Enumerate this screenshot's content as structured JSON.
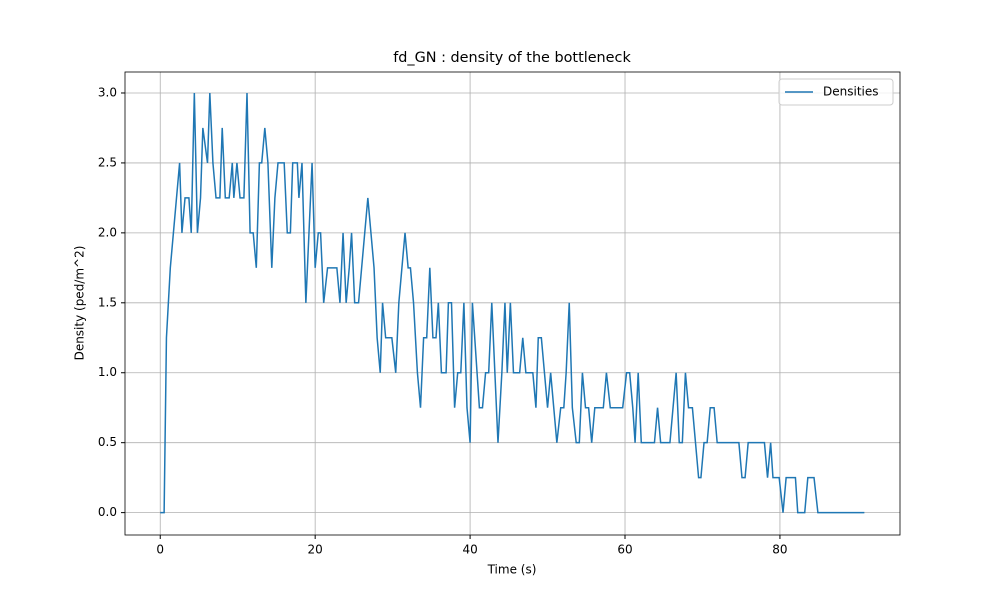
{
  "chart_data": {
    "type": "line",
    "title": "fd_GN : density of the bottleneck",
    "x_label": "Time (s)",
    "y_label": "Density (ped/m^2)",
    "xlim": [
      -4.55,
      95.5
    ],
    "ylim": [
      -0.16,
      3.15
    ],
    "xticks": [
      0,
      20,
      40,
      60,
      80
    ],
    "yticks": [
      {
        "value": 0,
        "label": "0.0"
      },
      {
        "value": 0.5,
        "label": "0.5"
      },
      {
        "value": 1,
        "label": "1.0"
      },
      {
        "value": 1.5,
        "label": "1.5"
      },
      {
        "value": 2,
        "label": "2.0"
      },
      {
        "value": 2.5,
        "label": "2.5"
      },
      {
        "value": 3,
        "label": "3.0"
      }
    ],
    "grid": true,
    "legend": "upper right",
    "x": [
      0,
      0.5,
      0.8,
      1.3,
      2.5,
      2.8,
      3.2,
      3.7,
      4.0,
      4.4,
      4.8,
      5.2,
      5.5,
      6.1,
      6.4,
      6.8,
      7.2,
      7.7,
      8.0,
      8.4,
      8.9,
      9.3,
      9.5,
      9.9,
      10.3,
      10.8,
      11.2,
      11.6,
      12.0,
      12.4,
      12.8,
      13.1,
      13.5,
      13.9,
      14.4,
      14.8,
      15.2,
      16.0,
      16.4,
      16.8,
      17.1,
      17.7,
      17.9,
      18.3,
      18.8,
      19.2,
      19.6,
      20.0,
      20.4,
      20.7,
      21.1,
      21.6,
      22.8,
      23.2,
      23.6,
      24.0,
      24.4,
      24.7,
      25.1,
      25.6,
      26.0,
      26.4,
      26.8,
      27.2,
      27.6,
      28.0,
      28.4,
      28.7,
      29.1,
      29.9,
      30.4,
      30.8,
      31.2,
      31.6,
      32.0,
      32.3,
      32.7,
      33.2,
      33.6,
      34.0,
      34.4,
      34.8,
      35.2,
      35.6,
      35.9,
      36.3,
      36.9,
      37.2,
      37.6,
      38.0,
      38.4,
      38.8,
      39.2,
      39.6,
      40.0,
      40.3,
      40.9,
      41.2,
      41.6,
      42.0,
      42.4,
      42.8,
      43.2,
      43.6,
      44.1,
      44.5,
      44.8,
      45.2,
      45.6,
      46.0,
      46.4,
      46.8,
      47.2,
      48.1,
      48.5,
      48.8,
      49.2,
      49.6,
      50.0,
      50.4,
      50.8,
      51.2,
      51.7,
      52.1,
      52.4,
      52.8,
      53.2,
      53.7,
      54.1,
      54.5,
      54.9,
      55.3,
      55.7,
      56.1,
      56.4,
      56.8,
      57.2,
      57.6,
      58.1,
      59.7,
      60.2,
      60.6,
      61.0,
      61.3,
      61.7,
      62.1,
      63.8,
      64.2,
      64.6,
      65.8,
      66.2,
      66.6,
      67.0,
      67.4,
      67.8,
      68.2,
      68.7,
      69.1,
      69.5,
      69.8,
      70.2,
      70.6,
      71.0,
      71.5,
      71.9,
      74.7,
      75.1,
      75.5,
      75.9,
      78.0,
      78.4,
      78.8,
      79.1,
      79.9,
      80.4,
      80.8,
      82.0,
      82.3,
      83.2,
      83.6,
      84.4,
      84.9,
      90.9
    ],
    "series": [
      {
        "name": "Densities",
        "color": "#1f77b4",
        "values": [
          0,
          0,
          1.25,
          1.75,
          2.5,
          2.0,
          2.25,
          2.25,
          2.0,
          3.0,
          2.0,
          2.25,
          2.75,
          2.5,
          3.0,
          2.5,
          2.25,
          2.25,
          2.75,
          2.25,
          2.25,
          2.5,
          2.25,
          2.5,
          2.25,
          2.25,
          3.0,
          2.0,
          2.0,
          1.75,
          2.5,
          2.5,
          2.75,
          2.5,
          1.75,
          2.25,
          2.5,
          2.5,
          2.0,
          2.0,
          2.5,
          2.5,
          2.25,
          2.5,
          1.5,
          2.0,
          2.5,
          1.75,
          2.0,
          2.0,
          1.5,
          1.75,
          1.75,
          1.5,
          2.0,
          1.5,
          1.75,
          2.0,
          1.5,
          1.5,
          1.75,
          2.0,
          2.25,
          2.0,
          1.75,
          1.25,
          1.0,
          1.5,
          1.25,
          1.25,
          1.0,
          1.5,
          1.75,
          2.0,
          1.75,
          1.75,
          1.5,
          1.0,
          0.75,
          1.25,
          1.25,
          1.75,
          1.25,
          1.25,
          1.5,
          1.0,
          1.0,
          1.5,
          1.5,
          0.75,
          1.0,
          1.0,
          1.5,
          0.75,
          0.5,
          1.5,
          1.0,
          0.75,
          0.75,
          1.0,
          1.0,
          1.5,
          1.0,
          0.5,
          1.0,
          1.5,
          1.0,
          1.5,
          1.0,
          1.0,
          1.0,
          1.25,
          1.0,
          1.0,
          0.75,
          1.25,
          1.25,
          1.0,
          0.75,
          1.0,
          0.75,
          0.5,
          0.75,
          0.75,
          1.0,
          1.5,
          0.75,
          0.5,
          0.5,
          1.0,
          0.75,
          0.75,
          0.5,
          0.75,
          0.75,
          0.75,
          0.75,
          1.0,
          0.75,
          0.75,
          1.0,
          1.0,
          0.75,
          0.5,
          1.0,
          0.5,
          0.5,
          0.75,
          0.5,
          0.5,
          0.75,
          1.0,
          0.5,
          0.5,
          1.0,
          0.75,
          0.75,
          0.5,
          0.25,
          0.25,
          0.5,
          0.5,
          0.75,
          0.75,
          0.5,
          0.5,
          0.25,
          0.25,
          0.5,
          0.5,
          0.25,
          0.5,
          0.25,
          0.25,
          0,
          0.25,
          0.25,
          0,
          0,
          0.25,
          0.25,
          0,
          0
        ]
      }
    ]
  }
}
